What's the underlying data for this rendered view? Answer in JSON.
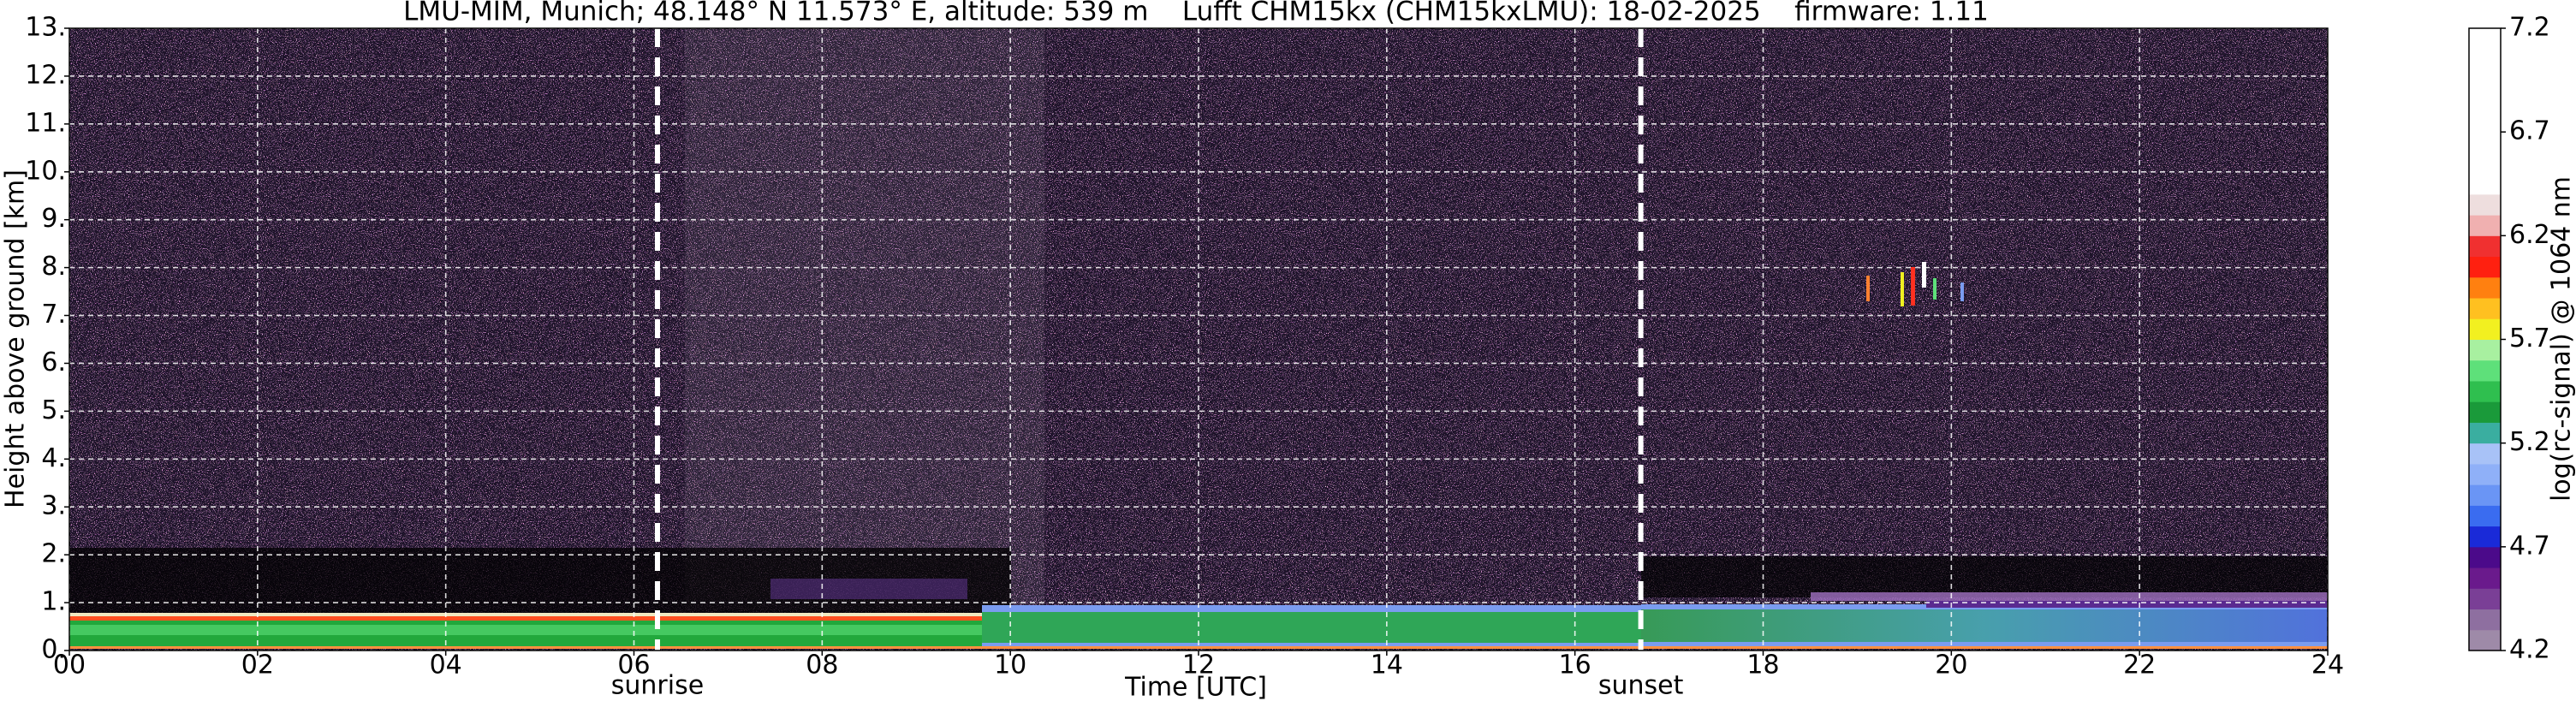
{
  "chart_data": {
    "type": "heatmap",
    "title": "LMU-MIM, Munich; 48.148° N 11.573° E, altitude: 539 m    Lufft CHM15kx (CHM15kxLMU): 18-02-2025    firmware: 1.11",
    "x_label": "Time [UTC]",
    "y_label": "Height above ground [km]",
    "xlim": [
      0,
      24
    ],
    "xticks": [
      {
        "value": 0,
        "label": "00"
      },
      {
        "value": 2,
        "label": "02"
      },
      {
        "value": 4,
        "label": "04"
      },
      {
        "value": 6,
        "label": "06"
      },
      {
        "value": 8,
        "label": "08"
      },
      10,
      12,
      14,
      16,
      18,
      20,
      22,
      24
    ],
    "ylim": [
      0,
      13
    ],
    "yticks": [
      {
        "value": 0,
        "label": "0."
      },
      {
        "value": 1,
        "label": "1."
      },
      {
        "value": 2,
        "label": "2."
      },
      {
        "value": 3,
        "label": "3."
      },
      {
        "value": 4,
        "label": "4."
      },
      {
        "value": 5,
        "label": "5."
      },
      {
        "value": 6,
        "label": "6."
      },
      {
        "value": 7,
        "label": "7."
      },
      {
        "value": 8,
        "label": "8."
      },
      {
        "value": 9,
        "label": "9."
      },
      {
        "value": 10,
        "label": "10."
      },
      {
        "value": 11,
        "label": "11."
      },
      {
        "value": 12,
        "label": "12."
      },
      {
        "value": 13,
        "label": "13."
      }
    ],
    "grid": true,
    "annotations": [
      {
        "text": "sunrise",
        "x": 6.25
      },
      {
        "text": "sunset",
        "x": 16.7
      }
    ],
    "colorbar": {
      "label": "log(rc-signal) @ 1064 nm",
      "lim": [
        4.2,
        7.2
      ],
      "ticks": [
        4.2,
        4.7,
        5.2,
        5.7,
        6.2,
        6.7,
        7.2
      ],
      "colors": [
        "#9e8aa8",
        "#8e6fa0",
        "#7a3f96",
        "#6a1a8c",
        "#4b0a8a",
        "#1a2ad8",
        "#3a6cf0",
        "#6a95f5",
        "#8fb0f8",
        "#a8c2f7",
        "#3aaea0",
        "#1a9a3a",
        "#2fbf4f",
        "#5ee07a",
        "#a8f0a0",
        "#f2f020",
        "#ffc020",
        "#ff8010",
        "#ff2010",
        "#f03030",
        "#f0b0b0",
        "#eedede",
        "#ffffff",
        "#ffffff",
        "#ffffff",
        "#ffffff",
        "#ffffff",
        "#ffffff",
        "#ffffff",
        "#ffffff"
      ]
    }
  }
}
